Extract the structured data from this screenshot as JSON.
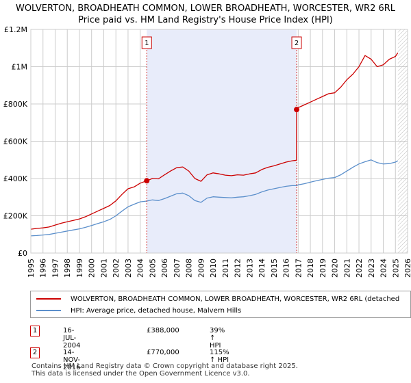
{
  "title_line1": "WOLVERTON, BROADHEATH COMMON, LOWER BROADHEATH, WORCESTER, WR2 6RL",
  "title_line2": "Price paid vs. HM Land Registry's House Price Index (HPI)",
  "legend": {
    "property_label": "WOLVERTON, BROADHEATH COMMON, LOWER BROADHEATH, WORCESTER, WR2 6RL (detached",
    "hpi_label": "HPI: Average price, detached house, Malvern Hills"
  },
  "transactions": [
    {
      "num": "1",
      "date": "16-JUL-2004",
      "price": "£388,000",
      "hpi": "39% ↑ HPI"
    },
    {
      "num": "2",
      "date": "14-NOV-2016",
      "price": "£770,000",
      "hpi": "115% ↑ HPI"
    }
  ],
  "footer_line1": "Contains HM Land Registry data © Crown copyright and database right 2025.",
  "footer_line2": "This data is licensed under the Open Government Licence v3.0.",
  "colors": {
    "property": "#cc0000",
    "hpi": "#5b8fcb",
    "shade": "#e8ecfa",
    "grid": "#cccccc",
    "hatch": "#bbbbbb"
  },
  "chart_data": {
    "type": "line",
    "title": "Price paid vs. HM Land Registry's House Price Index (HPI)",
    "xlabel": "",
    "ylabel": "",
    "xlim": [
      1995,
      2026
    ],
    "ylim": [
      0,
      1200000
    ],
    "yticks": [
      0,
      200000,
      400000,
      600000,
      800000,
      1000000,
      1200000
    ],
    "ytick_labels": [
      "£0",
      "£200K",
      "£400K",
      "£600K",
      "£800K",
      "£1M",
      "£1.2M"
    ],
    "xticks": [
      1995,
      1996,
      1997,
      1998,
      1999,
      2000,
      2001,
      2002,
      2003,
      2004,
      2005,
      2006,
      2007,
      2008,
      2009,
      2010,
      2011,
      2012,
      2013,
      2014,
      2015,
      2016,
      2017,
      2018,
      2019,
      2020,
      2021,
      2022,
      2023,
      2024,
      2025,
      2026
    ],
    "xtick_labels": [
      "1995",
      "1996",
      "1997",
      "1998",
      "1999",
      "2000",
      "2001",
      "2002",
      "2003",
      "2004",
      "2005",
      "2006",
      "2007",
      "2008",
      "2009",
      "2010",
      "2011",
      "2012",
      "2013",
      "2014",
      "2015",
      "2016",
      "2017",
      "2018",
      "2019",
      "2020",
      "2021",
      "2022",
      "2023",
      "2024",
      "2025",
      "2026"
    ],
    "shaded_region": [
      2004.54,
      2016.87
    ],
    "forecast_start": 2025.2,
    "sales": [
      {
        "label": "1",
        "x": 2004.54,
        "y": 388000
      },
      {
        "label": "2",
        "x": 2016.87,
        "y": 770000
      }
    ],
    "series": [
      {
        "name": "WOLVERTON, BROADHEATH COMMON, LOWER BROADHEATH, WORCESTER, WR2 6RL (detached house)",
        "x": [
          1995.0,
          1995.5,
          1996.0,
          1996.5,
          1997.0,
          1997.5,
          1998.0,
          1998.5,
          1999.0,
          1999.5,
          2000.0,
          2000.5,
          2001.0,
          2001.5,
          2002.0,
          2002.5,
          2003.0,
          2003.5,
          2004.0,
          2004.54,
          2005.0,
          2005.5,
          2006.0,
          2006.5,
          2007.0,
          2007.5,
          2008.0,
          2008.5,
          2009.0,
          2009.5,
          2010.0,
          2010.5,
          2011.0,
          2011.5,
          2012.0,
          2012.5,
          2013.0,
          2013.5,
          2014.0,
          2014.5,
          2015.0,
          2015.5,
          2016.0,
          2016.5,
          2016.86,
          2016.87,
          2017.0,
          2017.5,
          2018.0,
          2018.5,
          2019.0,
          2019.5,
          2020.0,
          2020.5,
          2021.0,
          2021.5,
          2022.0,
          2022.5,
          2023.0,
          2023.5,
          2024.0,
          2024.5,
          2025.0,
          2025.2
        ],
        "y": [
          128000,
          132000,
          135000,
          140000,
          150000,
          160000,
          168000,
          175000,
          183000,
          195000,
          210000,
          225000,
          240000,
          255000,
          280000,
          315000,
          345000,
          355000,
          375000,
          388000,
          400000,
          398000,
          420000,
          440000,
          458000,
          462000,
          440000,
          400000,
          385000,
          420000,
          430000,
          425000,
          418000,
          415000,
          420000,
          418000,
          425000,
          430000,
          448000,
          460000,
          468000,
          478000,
          488000,
          495000,
          498000,
          770000,
          780000,
          795000,
          810000,
          825000,
          840000,
          855000,
          860000,
          890000,
          930000,
          960000,
          1000000,
          1060000,
          1040000,
          1000000,
          1010000,
          1040000,
          1055000,
          1075000
        ]
      },
      {
        "name": "HPI: Average price, detached house, Malvern Hills",
        "x": [
          1995.0,
          1995.5,
          1996.0,
          1996.5,
          1997.0,
          1997.5,
          1998.0,
          1998.5,
          1999.0,
          1999.5,
          2000.0,
          2000.5,
          2001.0,
          2001.5,
          2002.0,
          2002.5,
          2003.0,
          2003.5,
          2004.0,
          2004.54,
          2005.0,
          2005.5,
          2006.0,
          2006.5,
          2007.0,
          2007.5,
          2008.0,
          2008.5,
          2009.0,
          2009.5,
          2010.0,
          2010.5,
          2011.0,
          2011.5,
          2012.0,
          2012.5,
          2013.0,
          2013.5,
          2014.0,
          2014.5,
          2015.0,
          2015.5,
          2016.0,
          2016.5,
          2016.87,
          2017.0,
          2017.5,
          2018.0,
          2018.5,
          2019.0,
          2019.5,
          2020.0,
          2020.5,
          2021.0,
          2021.5,
          2022.0,
          2022.5,
          2023.0,
          2023.5,
          2024.0,
          2024.5,
          2025.0,
          2025.2
        ],
        "y": [
          92000,
          94000,
          97000,
          100000,
          106000,
          112000,
          118000,
          124000,
          130000,
          138000,
          148000,
          158000,
          168000,
          180000,
          200000,
          225000,
          248000,
          262000,
          275000,
          279000,
          285000,
          282000,
          292000,
          305000,
          318000,
          322000,
          308000,
          282000,
          272000,
          295000,
          302000,
          300000,
          298000,
          296000,
          300000,
          302000,
          308000,
          315000,
          328000,
          338000,
          345000,
          352000,
          358000,
          362000,
          362000,
          366000,
          372000,
          380000,
          388000,
          395000,
          402000,
          405000,
          420000,
          440000,
          460000,
          478000,
          490000,
          500000,
          485000,
          478000,
          480000,
          488000,
          495000
        ]
      }
    ]
  }
}
